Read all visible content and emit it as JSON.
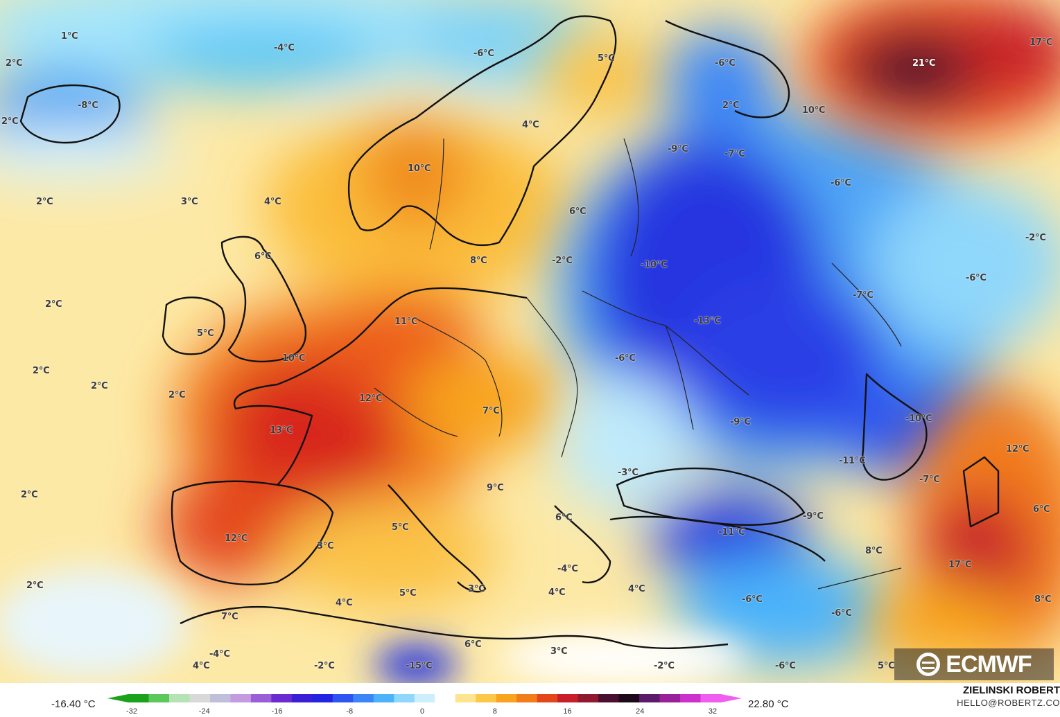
{
  "map": {
    "labels": [
      {
        "text": "1°C"
      },
      {
        "text": "-4°C"
      },
      {
        "text": "2°C"
      },
      {
        "text": "-8°C"
      },
      {
        "text": "2°C"
      },
      {
        "text": "-6°C"
      },
      {
        "text": "5°C"
      },
      {
        "text": "-6°C"
      },
      {
        "text": "21°C"
      },
      {
        "text": "17°C"
      },
      {
        "text": "2°C"
      },
      {
        "text": "10°C"
      },
      {
        "text": "4°C"
      },
      {
        "text": "-9°C"
      },
      {
        "text": "-7°C"
      },
      {
        "text": "10°C"
      },
      {
        "text": "-6°C"
      },
      {
        "text": "2°C"
      },
      {
        "text": "3°C"
      },
      {
        "text": "4°C"
      },
      {
        "text": "6°C"
      },
      {
        "text": "6°C"
      },
      {
        "text": "-2°C"
      },
      {
        "text": "8°C"
      },
      {
        "text": "-2°C"
      },
      {
        "text": "-10°C"
      },
      {
        "text": "-6°C"
      },
      {
        "text": "2°C"
      },
      {
        "text": "-7°C"
      },
      {
        "text": "-13°C"
      },
      {
        "text": "11°C"
      },
      {
        "text": "5°C"
      },
      {
        "text": "10°C"
      },
      {
        "text": "-6°C"
      },
      {
        "text": "2°C"
      },
      {
        "text": "2°C"
      },
      {
        "text": "2°C"
      },
      {
        "text": "12°C"
      },
      {
        "text": "7°C"
      },
      {
        "text": "-10°C"
      },
      {
        "text": "13°C"
      },
      {
        "text": "-9°C"
      },
      {
        "text": "12°C"
      },
      {
        "text": "-11°C"
      },
      {
        "text": "-3°C"
      },
      {
        "text": "-7°C"
      },
      {
        "text": "2°C"
      },
      {
        "text": "9°C"
      },
      {
        "text": "6°C"
      },
      {
        "text": "-9°C"
      },
      {
        "text": "6°C"
      },
      {
        "text": "-11°C"
      },
      {
        "text": "12°C"
      },
      {
        "text": "5°C"
      },
      {
        "text": "3°C"
      },
      {
        "text": "8°C"
      },
      {
        "text": "17°C"
      },
      {
        "text": "-4°C"
      },
      {
        "text": "2°C"
      },
      {
        "text": "5°C"
      },
      {
        "text": "3°C"
      },
      {
        "text": "4°C"
      },
      {
        "text": "4°C"
      },
      {
        "text": "-6°C"
      },
      {
        "text": "4°C"
      },
      {
        "text": "-6°C"
      },
      {
        "text": "8°C"
      },
      {
        "text": "7°C"
      },
      {
        "text": "6°C"
      },
      {
        "text": "3°C"
      },
      {
        "text": "-4°C"
      },
      {
        "text": "4°C"
      },
      {
        "text": "-2°C"
      },
      {
        "text": "-15°C"
      },
      {
        "text": "-2°C"
      },
      {
        "text": "-6°C"
      },
      {
        "text": "5°C"
      }
    ]
  },
  "logo": {
    "text": "ECMWF"
  },
  "colorbar": {
    "min_label": "-16.40 °C",
    "max_label": "22.80 °C",
    "ticks": [
      "-32",
      "-24",
      "-16",
      "-8",
      "0",
      "8",
      "16",
      "24",
      "32"
    ],
    "colors": [
      "#1aa31a",
      "#5cc85c",
      "#b5e3b5",
      "#d9d9d9",
      "#bfbfd9",
      "#c49ae0",
      "#9a5fd6",
      "#6a2bd0",
      "#3b1fd6",
      "#2424e0",
      "#2f55f0",
      "#3a86f7",
      "#4cb3fb",
      "#8fd7fb",
      "#cdeffb",
      "#ffffff",
      "#fde58f",
      "#fcc84a",
      "#f8a41e",
      "#f27c1a",
      "#e4461c",
      "#c81e2a",
      "#8f1a30",
      "#4a0f30",
      "#1c0a1a",
      "#5c1a6a",
      "#9a1f9a",
      "#cc2fcc",
      "#f05ef0"
    ]
  },
  "credit": {
    "name": "ZIELINSKI ROBERT",
    "email": "HELLO@ROBERTZ.CO"
  }
}
